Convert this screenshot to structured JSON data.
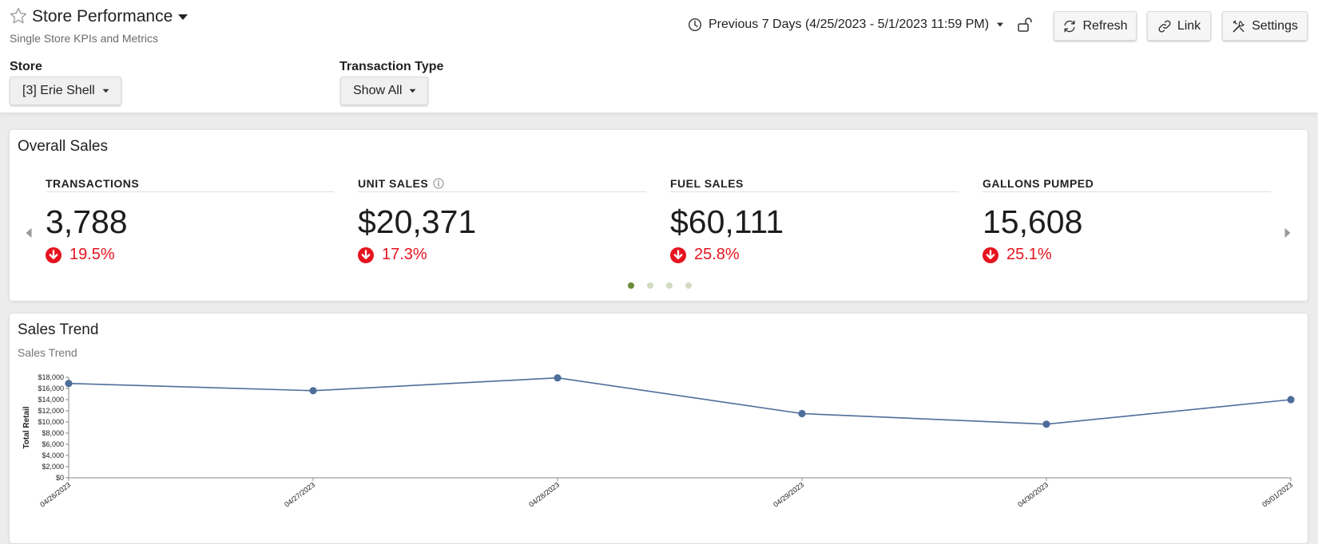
{
  "page": {
    "title": "Store Performance",
    "subtitle": "Single Store KPIs and Metrics"
  },
  "header": {
    "date_range": "Previous 7 Days (4/25/2023 - 5/1/2023 11:59 PM)",
    "refresh_label": "Refresh",
    "link_label": "Link",
    "settings_label": "Settings"
  },
  "filters": {
    "store_label": "Store",
    "store_value": "[3] Erie Shell",
    "transaction_type_label": "Transaction Type",
    "transaction_type_value": "Show All"
  },
  "overall": {
    "title": "Overall Sales",
    "kpis": [
      {
        "label": "TRANSACTIONS",
        "value": "3,788",
        "delta": "19.5%",
        "direction": "down",
        "info": false
      },
      {
        "label": "UNIT SALES",
        "value": "$20,371",
        "delta": "17.3%",
        "direction": "down",
        "info": true
      },
      {
        "label": "FUEL SALES",
        "value": "$60,111",
        "delta": "25.8%",
        "direction": "down",
        "info": false
      },
      {
        "label": "GALLONS PUMPED",
        "value": "15,608",
        "delta": "25.1%",
        "direction": "down",
        "info": false
      }
    ],
    "carousel": {
      "pages": 4,
      "active": 1
    }
  },
  "trend": {
    "title": "Sales Trend",
    "subtitle": "Sales Trend"
  },
  "colors": {
    "accent_line": "#4e6e9a",
    "negative": "#e5141e",
    "dot_active": "#6c8a3c",
    "dot_inactive": "#d3dbc3"
  },
  "chart_data": {
    "type": "line",
    "title": "Sales Trend",
    "xlabel": "",
    "ylabel": "Total Retail",
    "categories": [
      "04/26/2023",
      "04/27/2023",
      "04/28/2023",
      "04/29/2023",
      "04/30/2023",
      "05/01/2023"
    ],
    "series": [
      {
        "values": [
          16900,
          15600,
          17900,
          11500,
          9600,
          14000
        ]
      }
    ],
    "ylim": [
      0,
      18000
    ],
    "yticks": [
      0,
      2000,
      4000,
      6000,
      8000,
      10000,
      12000,
      14000,
      16000,
      18000
    ],
    "ytick_labels": [
      "$0",
      "$2,000",
      "$4,000",
      "$6,000",
      "$8,000",
      "$10,000",
      "$12,000",
      "$14,000",
      "$16,000",
      "$18,000"
    ],
    "grid": false,
    "legend": "none"
  }
}
